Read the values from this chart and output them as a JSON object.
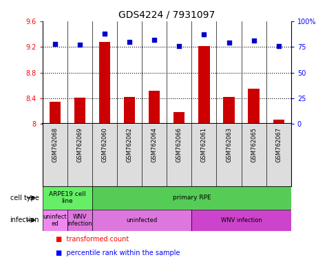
{
  "title": "GDS4224 / 7931097",
  "samples": [
    "GSM762068",
    "GSM762069",
    "GSM762060",
    "GSM762062",
    "GSM762064",
    "GSM762066",
    "GSM762061",
    "GSM762063",
    "GSM762065",
    "GSM762067"
  ],
  "transformed_count": [
    8.35,
    8.41,
    9.28,
    8.42,
    8.52,
    8.19,
    9.21,
    8.42,
    8.55,
    8.07
  ],
  "percentile_rank": [
    78,
    77,
    88,
    80,
    82,
    76,
    87,
    79,
    81,
    76
  ],
  "ylim_left": [
    8.0,
    9.6
  ],
  "ylim_right": [
    0,
    100
  ],
  "yticks_left": [
    8.0,
    8.4,
    8.8,
    9.2,
    9.6
  ],
  "yticks_right": [
    0,
    25,
    50,
    75,
    100
  ],
  "ytick_labels_left": [
    "8",
    "8.4",
    "8.8",
    "9.2",
    "9.6"
  ],
  "ytick_labels_right": [
    "0",
    "25",
    "50",
    "75",
    "100%"
  ],
  "bar_color": "#cc0000",
  "dot_color": "#0000cc",
  "cell_type_groups": [
    {
      "label": "ARPE19 cell\nline",
      "start": 0,
      "end": 2,
      "color": "#66ee66"
    },
    {
      "label": "primary RPE",
      "start": 2,
      "end": 10,
      "color": "#55cc55"
    }
  ],
  "infection_groups": [
    {
      "label": "uninfect\ned",
      "start": 0,
      "end": 1,
      "color": "#ee88ee"
    },
    {
      "label": "WNV\ninfection",
      "start": 1,
      "end": 2,
      "color": "#dd77dd"
    },
    {
      "label": "uninfected",
      "start": 2,
      "end": 6,
      "color": "#dd77dd"
    },
    {
      "label": "WNV infection",
      "start": 6,
      "end": 10,
      "color": "#cc44cc"
    }
  ],
  "legend_red_label": "transformed count",
  "legend_blue_label": "percentile rank within the sample",
  "cell_type_label": "cell type",
  "infection_label": "infection",
  "sample_bg_color": "#dddddd",
  "background_color": "#ffffff"
}
